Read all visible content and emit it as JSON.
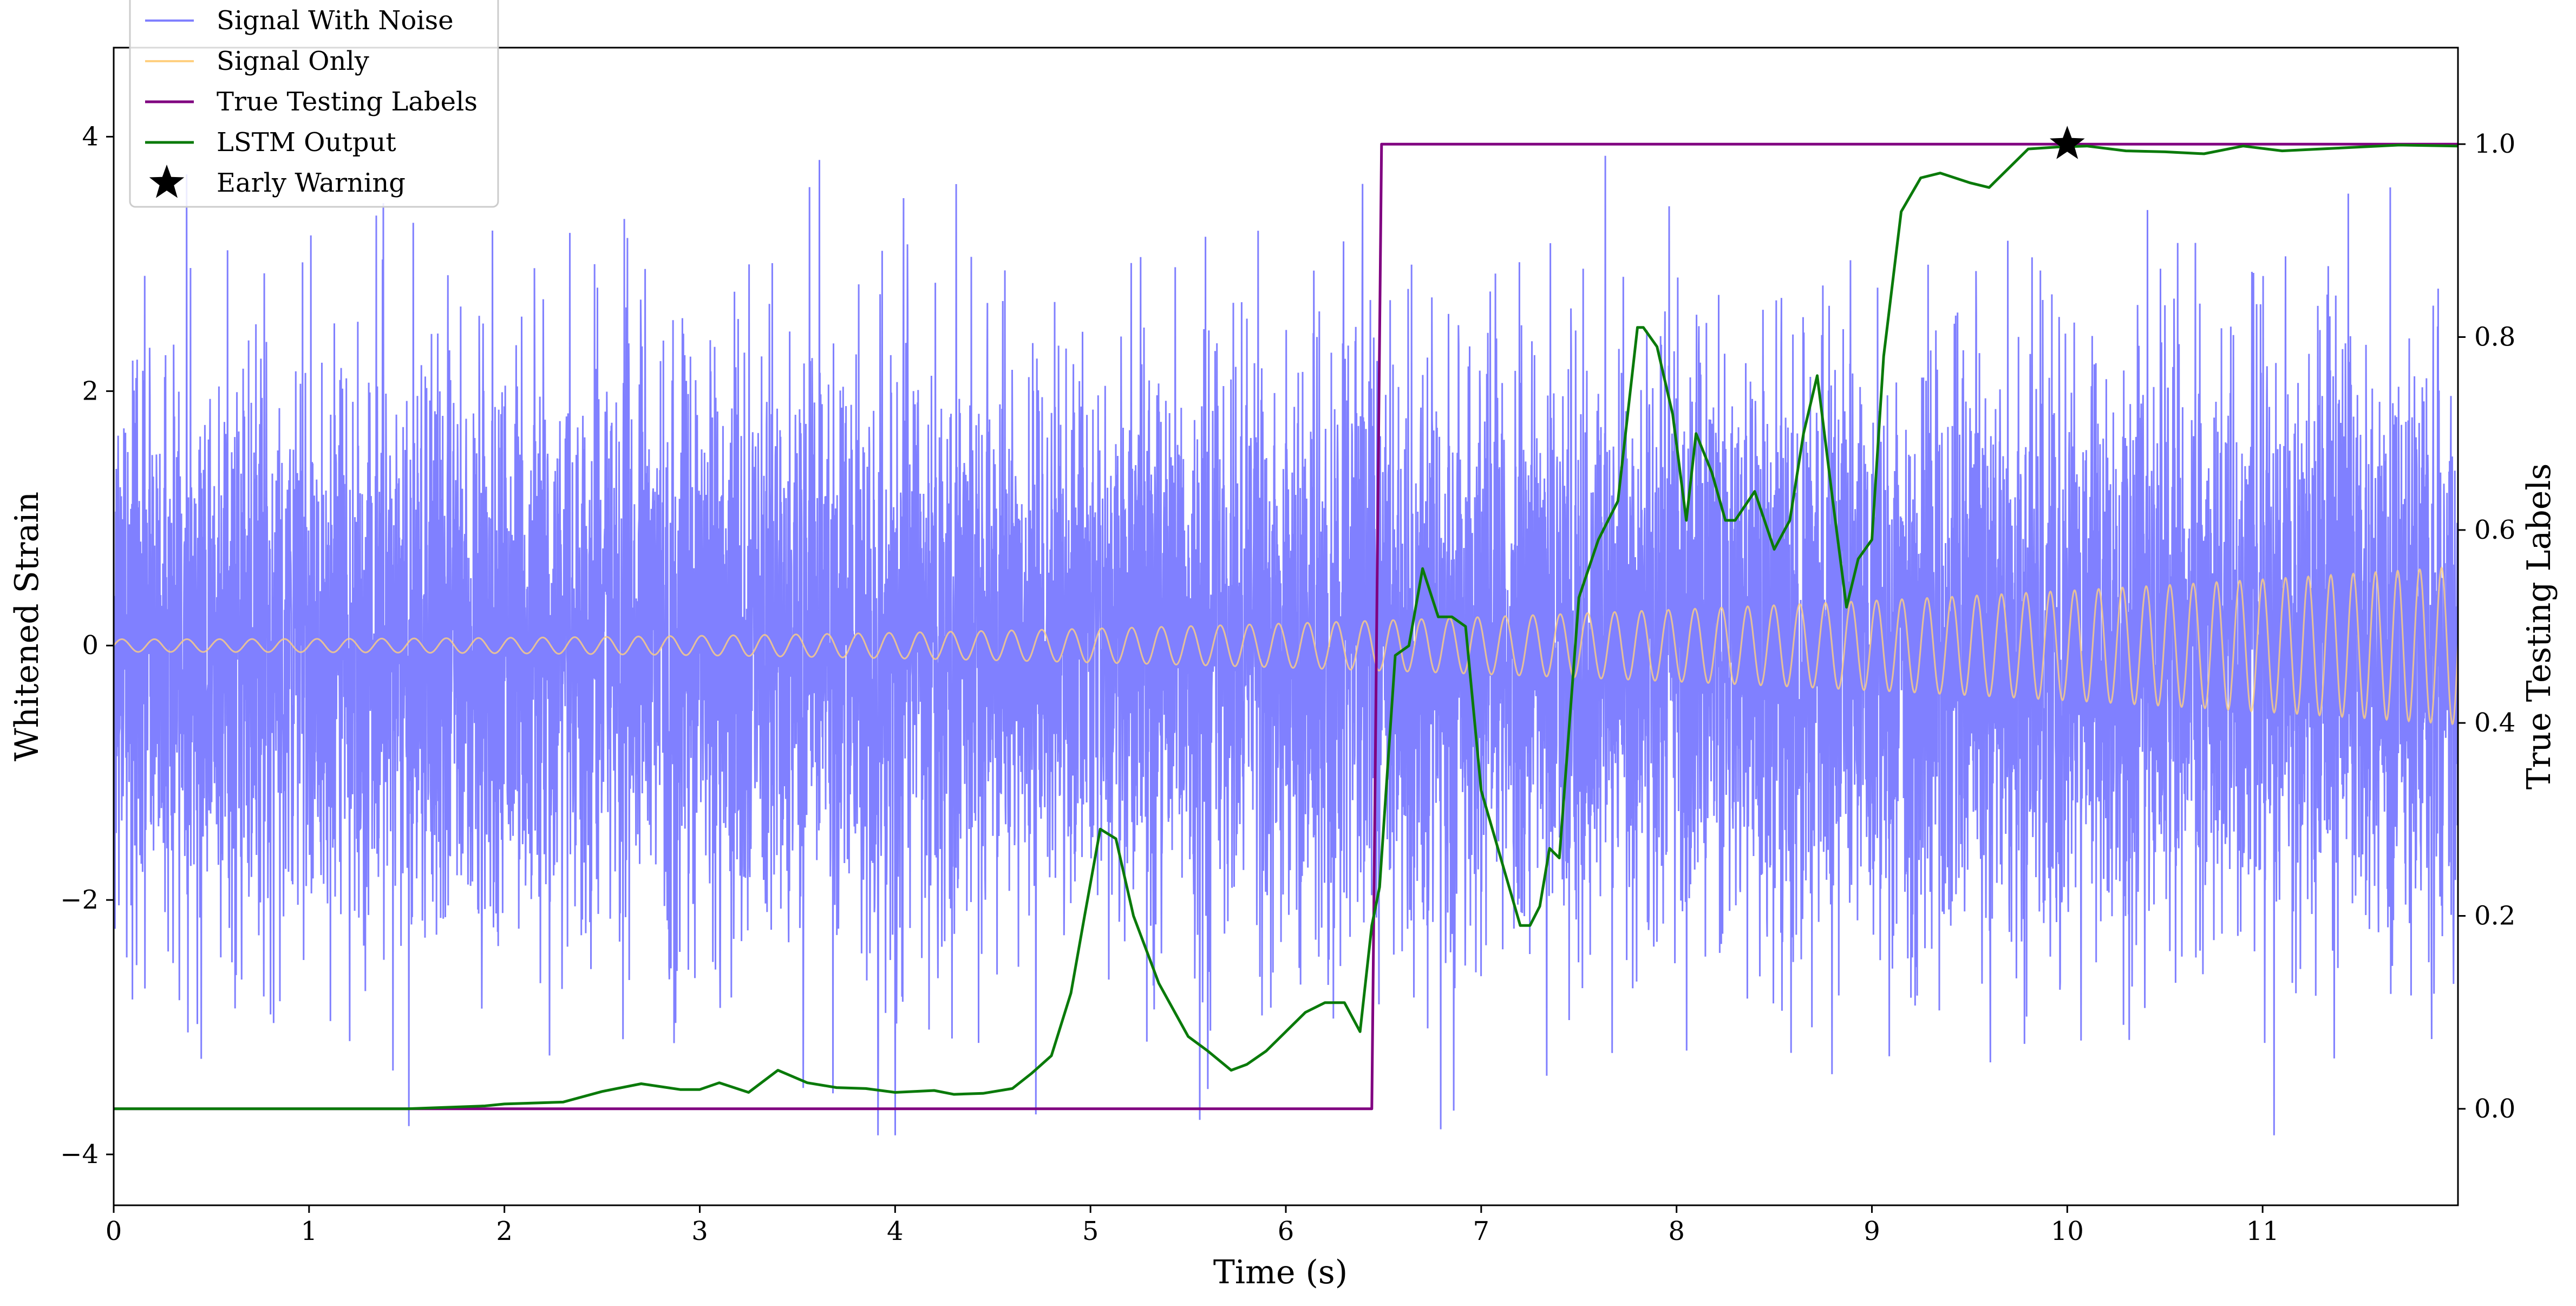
{
  "chart_data": {
    "type": "line",
    "xlabel": "Time (s)",
    "ylabel_left": "Whitened Strain",
    "ylabel_right": "True Testing Labels",
    "xlim": [
      0,
      12
    ],
    "ylim_left": [
      -4.4,
      4.7
    ],
    "ylim_right": [
      -0.1,
      1.1
    ],
    "x_ticks": [
      0,
      1,
      2,
      3,
      4,
      5,
      6,
      7,
      8,
      9,
      10,
      11
    ],
    "x_tick_labels": [
      "0",
      "1",
      "2",
      "3",
      "4",
      "5",
      "6",
      "7",
      "8",
      "9",
      "10",
      "11"
    ],
    "y_left_ticks": [
      -4,
      -2,
      0,
      2,
      4
    ],
    "y_left_tick_labels": [
      "−4",
      "−2",
      "0",
      "2",
      "4"
    ],
    "y_right_ticks": [
      0.0,
      0.2,
      0.4,
      0.6,
      0.8,
      1.0
    ],
    "y_right_tick_labels": [
      "0.0",
      "0.2",
      "0.4",
      "0.6",
      "0.8",
      "1.0"
    ],
    "legend_position": "top-left",
    "grid": false,
    "series": [
      {
        "name": "Signal With Noise",
        "axis": "left",
        "color": "#8080ff",
        "kind": "noise",
        "x_range": [
          0,
          12
        ],
        "spread": 1.15,
        "max_abs": 3.85
      },
      {
        "name": "Signal Only",
        "axis": "left",
        "color": "#ffd080",
        "kind": "chirp",
        "x_range": [
          0,
          12
        ],
        "amplitude_start": 0.05,
        "amplitude_end": 0.62
      },
      {
        "name": "True Testing Labels",
        "axis": "right",
        "color": "#800080",
        "kind": "line",
        "x": [
          0,
          6.44,
          6.49,
          12
        ],
        "y": [
          0,
          0,
          1,
          1
        ]
      },
      {
        "name": "LSTM Output",
        "axis": "right",
        "color": "#0a7a0a",
        "kind": "line",
        "x": [
          0,
          1.5,
          1.9,
          2.0,
          2.3,
          2.5,
          2.7,
          2.9,
          3.0,
          3.1,
          3.25,
          3.4,
          3.55,
          3.7,
          3.85,
          4.0,
          4.2,
          4.3,
          4.45,
          4.6,
          4.7,
          4.8,
          4.9,
          4.97,
          5.05,
          5.13,
          5.22,
          5.35,
          5.5,
          5.6,
          5.72,
          5.8,
          5.9,
          6.0,
          6.1,
          6.2,
          6.3,
          6.38,
          6.44,
          6.48,
          6.52,
          6.56,
          6.63,
          6.7,
          6.78,
          6.85,
          6.92,
          7.0,
          7.1,
          7.2,
          7.25,
          7.3,
          7.35,
          7.4,
          7.5,
          7.6,
          7.7,
          7.8,
          7.83,
          7.9,
          7.98,
          8.05,
          8.1,
          8.18,
          8.25,
          8.3,
          8.4,
          8.5,
          8.58,
          8.65,
          8.72,
          8.8,
          8.87,
          8.93,
          9.0,
          9.06,
          9.15,
          9.25,
          9.35,
          9.5,
          9.6,
          9.7,
          9.8,
          9.95,
          10.1,
          10.3,
          10.5,
          10.7,
          10.9,
          11.1,
          11.4,
          11.7,
          12
        ],
        "y": [
          0,
          0.0,
          0.003,
          0.005,
          0.007,
          0.018,
          0.026,
          0.02,
          0.02,
          0.027,
          0.017,
          0.04,
          0.027,
          0.022,
          0.021,
          0.017,
          0.019,
          0.015,
          0.016,
          0.021,
          0.037,
          0.055,
          0.12,
          0.2,
          0.29,
          0.28,
          0.2,
          0.13,
          0.075,
          0.06,
          0.04,
          0.046,
          0.06,
          0.08,
          0.1,
          0.11,
          0.11,
          0.08,
          0.19,
          0.23,
          0.35,
          0.47,
          0.48,
          0.56,
          0.51,
          0.51,
          0.5,
          0.33,
          0.26,
          0.19,
          0.19,
          0.21,
          0.27,
          0.26,
          0.53,
          0.59,
          0.63,
          0.81,
          0.81,
          0.79,
          0.72,
          0.61,
          0.7,
          0.66,
          0.61,
          0.61,
          0.64,
          0.58,
          0.61,
          0.7,
          0.76,
          0.63,
          0.52,
          0.57,
          0.59,
          0.78,
          0.93,
          0.965,
          0.97,
          0.96,
          0.955,
          0.975,
          0.995,
          0.997,
          0.998,
          0.993,
          0.992,
          0.99,
          0.998,
          0.993,
          0.996,
          0.999,
          0.998
        ]
      },
      {
        "name": "Early Warning",
        "axis": "right",
        "color": "#000000",
        "kind": "marker",
        "marker": "star",
        "x": [
          10.0
        ],
        "y": [
          1.0
        ]
      }
    ]
  }
}
